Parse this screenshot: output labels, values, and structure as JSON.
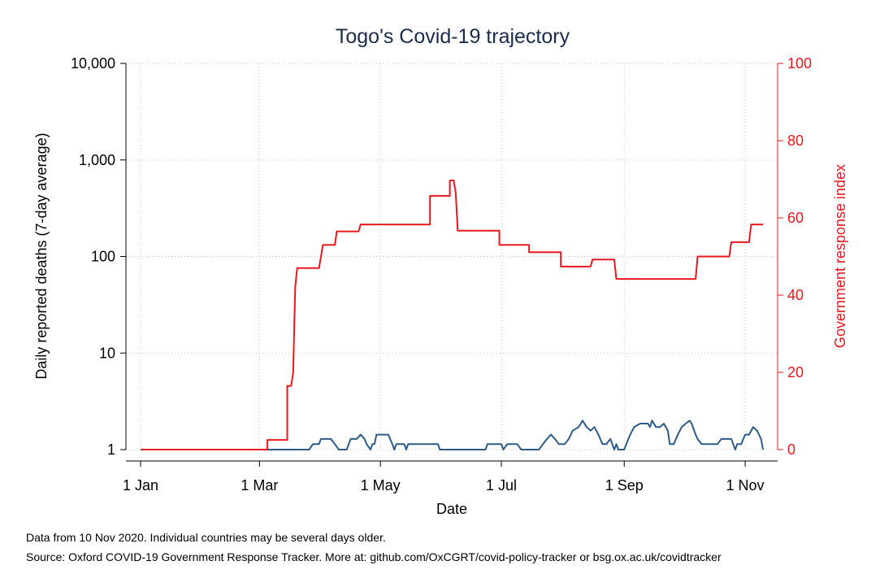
{
  "chart_data": {
    "type": "line",
    "title": "Togo's Covid-19 trajectory",
    "xlabel": "Date",
    "ylabel_left": "Daily reported deaths (7-day average)",
    "ylabel_right": "Government response index",
    "x_tick_labels": [
      "1 Jan",
      "1 Mar",
      "1 May",
      "1 Jul",
      "1 Sep",
      "1 Nov"
    ],
    "x_tick_dates": [
      "2020-01-01",
      "2020-03-01",
      "2020-05-01",
      "2020-07-01",
      "2020-09-01",
      "2020-11-01"
    ],
    "x_range": [
      "2020-01-01",
      "2020-11-10"
    ],
    "y_left_scale": "log",
    "y_left_range": [
      1,
      10000
    ],
    "y_left_ticks": [
      1,
      10,
      100,
      1000,
      10000
    ],
    "y_left_tick_labels": [
      "1",
      "10",
      "100",
      "1,000",
      "10,000"
    ],
    "y_right_range": [
      0,
      100
    ],
    "y_right_ticks": [
      0,
      20,
      40,
      60,
      80,
      100
    ],
    "y_right_tick_labels": [
      "0",
      "20",
      "40",
      "60",
      "80",
      "100"
    ],
    "grid": true,
    "series": [
      {
        "axis": "left",
        "color": "#2c5c87",
        "points": [
          [
            "2020-01-01",
            1
          ],
          [
            "2020-03-01",
            1
          ],
          [
            "2020-03-26",
            1
          ],
          [
            "2020-03-28",
            1.14
          ],
          [
            "2020-03-31",
            1.14
          ],
          [
            "2020-04-01",
            1.29
          ],
          [
            "2020-04-06",
            1.29
          ],
          [
            "2020-04-08",
            1.14
          ],
          [
            "2020-04-10",
            1
          ],
          [
            "2020-04-14",
            1
          ],
          [
            "2020-04-16",
            1.29
          ],
          [
            "2020-04-19",
            1.29
          ],
          [
            "2020-04-21",
            1.43
          ],
          [
            "2020-04-23",
            1.29
          ],
          [
            "2020-04-24",
            1.14
          ],
          [
            "2020-04-26",
            1
          ],
          [
            "2020-04-27",
            1.14
          ],
          [
            "2020-04-28",
            1.14
          ],
          [
            "2020-04-29",
            1.43
          ],
          [
            "2020-05-05",
            1.43
          ],
          [
            "2020-05-07",
            1.14
          ],
          [
            "2020-05-08",
            1
          ],
          [
            "2020-05-09",
            1.14
          ],
          [
            "2020-05-13",
            1.14
          ],
          [
            "2020-05-14",
            1
          ],
          [
            "2020-05-15",
            1.14
          ],
          [
            "2020-05-30",
            1.14
          ],
          [
            "2020-05-31",
            1
          ],
          [
            "2020-06-23",
            1
          ],
          [
            "2020-06-24",
            1.14
          ],
          [
            "2020-07-01",
            1.14
          ],
          [
            "2020-07-02",
            1
          ],
          [
            "2020-07-04",
            1.14
          ],
          [
            "2020-07-09",
            1.14
          ],
          [
            "2020-07-11",
            1
          ],
          [
            "2020-07-20",
            1
          ],
          [
            "2020-07-22",
            1.14
          ],
          [
            "2020-07-24",
            1.29
          ],
          [
            "2020-07-26",
            1.43
          ],
          [
            "2020-07-28",
            1.29
          ],
          [
            "2020-07-30",
            1.14
          ],
          [
            "2020-08-02",
            1.14
          ],
          [
            "2020-08-04",
            1.29
          ],
          [
            "2020-08-06",
            1.57
          ],
          [
            "2020-08-09",
            1.71
          ],
          [
            "2020-08-11",
            2
          ],
          [
            "2020-08-13",
            1.71
          ],
          [
            "2020-08-15",
            1.57
          ],
          [
            "2020-08-17",
            1.71
          ],
          [
            "2020-08-19",
            1.43
          ],
          [
            "2020-08-21",
            1.14
          ],
          [
            "2020-08-23",
            1.14
          ],
          [
            "2020-08-25",
            1.29
          ],
          [
            "2020-08-27",
            1
          ],
          [
            "2020-08-28",
            1.14
          ],
          [
            "2020-08-29",
            1
          ],
          [
            "2020-09-01",
            1
          ],
          [
            "2020-09-02",
            1.14
          ],
          [
            "2020-09-04",
            1.43
          ],
          [
            "2020-09-06",
            1.71
          ],
          [
            "2020-09-09",
            1.86
          ],
          [
            "2020-09-13",
            1.86
          ],
          [
            "2020-09-14",
            1.71
          ],
          [
            "2020-09-15",
            2
          ],
          [
            "2020-09-17",
            1.71
          ],
          [
            "2020-09-19",
            1.71
          ],
          [
            "2020-09-21",
            1.86
          ],
          [
            "2020-09-23",
            1.57
          ],
          [
            "2020-09-24",
            1.14
          ],
          [
            "2020-09-26",
            1.14
          ],
          [
            "2020-09-28",
            1.43
          ],
          [
            "2020-09-30",
            1.71
          ],
          [
            "2020-10-02",
            1.86
          ],
          [
            "2020-10-04",
            2
          ],
          [
            "2020-10-05",
            1.86
          ],
          [
            "2020-10-07",
            1.43
          ],
          [
            "2020-10-08",
            1.29
          ],
          [
            "2020-10-10",
            1.14
          ],
          [
            "2020-10-18",
            1.14
          ],
          [
            "2020-10-20",
            1.29
          ],
          [
            "2020-10-25",
            1.29
          ],
          [
            "2020-10-27",
            1
          ],
          [
            "2020-10-28",
            1.14
          ],
          [
            "2020-10-30",
            1.14
          ],
          [
            "2020-11-01",
            1.43
          ],
          [
            "2020-11-03",
            1.43
          ],
          [
            "2020-11-05",
            1.71
          ],
          [
            "2020-11-07",
            1.57
          ],
          [
            "2020-11-08",
            1.43
          ],
          [
            "2020-11-09",
            1.29
          ],
          [
            "2020-11-10",
            1
          ]
        ]
      },
      {
        "axis": "right",
        "color": "#e8181e",
        "points": [
          [
            "2020-01-01",
            0
          ],
          [
            "2020-03-05",
            0
          ],
          [
            "2020-03-05",
            2.5
          ],
          [
            "2020-03-15",
            2.5
          ],
          [
            "2020-03-15",
            16.5
          ],
          [
            "2020-03-17",
            16.5
          ],
          [
            "2020-03-18",
            20
          ],
          [
            "2020-03-19",
            42
          ],
          [
            "2020-03-20",
            47
          ],
          [
            "2020-03-31",
            47
          ],
          [
            "2020-04-02",
            53
          ],
          [
            "2020-04-08",
            53
          ],
          [
            "2020-04-09",
            56.5
          ],
          [
            "2020-04-20",
            56.5
          ],
          [
            "2020-04-21",
            58.3
          ],
          [
            "2020-05-26",
            58.3
          ],
          [
            "2020-05-26",
            65.7
          ],
          [
            "2020-06-05",
            65.7
          ],
          [
            "2020-06-05",
            69.7
          ],
          [
            "2020-06-07",
            69.7
          ],
          [
            "2020-06-08",
            66.4
          ],
          [
            "2020-06-09",
            56.7
          ],
          [
            "2020-06-30",
            56.7
          ],
          [
            "2020-06-30",
            53
          ],
          [
            "2020-07-15",
            53
          ],
          [
            "2020-07-15",
            51.1
          ],
          [
            "2020-07-31",
            51.1
          ],
          [
            "2020-07-31",
            47.4
          ],
          [
            "2020-08-15",
            47.4
          ],
          [
            "2020-08-16",
            49.2
          ],
          [
            "2020-08-27",
            49.2
          ],
          [
            "2020-08-28",
            44.2
          ],
          [
            "2020-10-07",
            44.2
          ],
          [
            "2020-10-08",
            50
          ],
          [
            "2020-10-24",
            50
          ],
          [
            "2020-10-25",
            53.7
          ],
          [
            "2020-11-03",
            53.7
          ],
          [
            "2020-11-04",
            58.3
          ],
          [
            "2020-11-10",
            58.3
          ]
        ]
      }
    ]
  },
  "footnotes": {
    "line1": "Data from 10 Nov 2020. Individual countries may be several days older.",
    "line2": "Source: Oxford COVID-19 Government Response Tracker. More at: github.com/OxCGRT/covid-policy-tracker or bsg.ox.ac.uk/covidtracker"
  }
}
